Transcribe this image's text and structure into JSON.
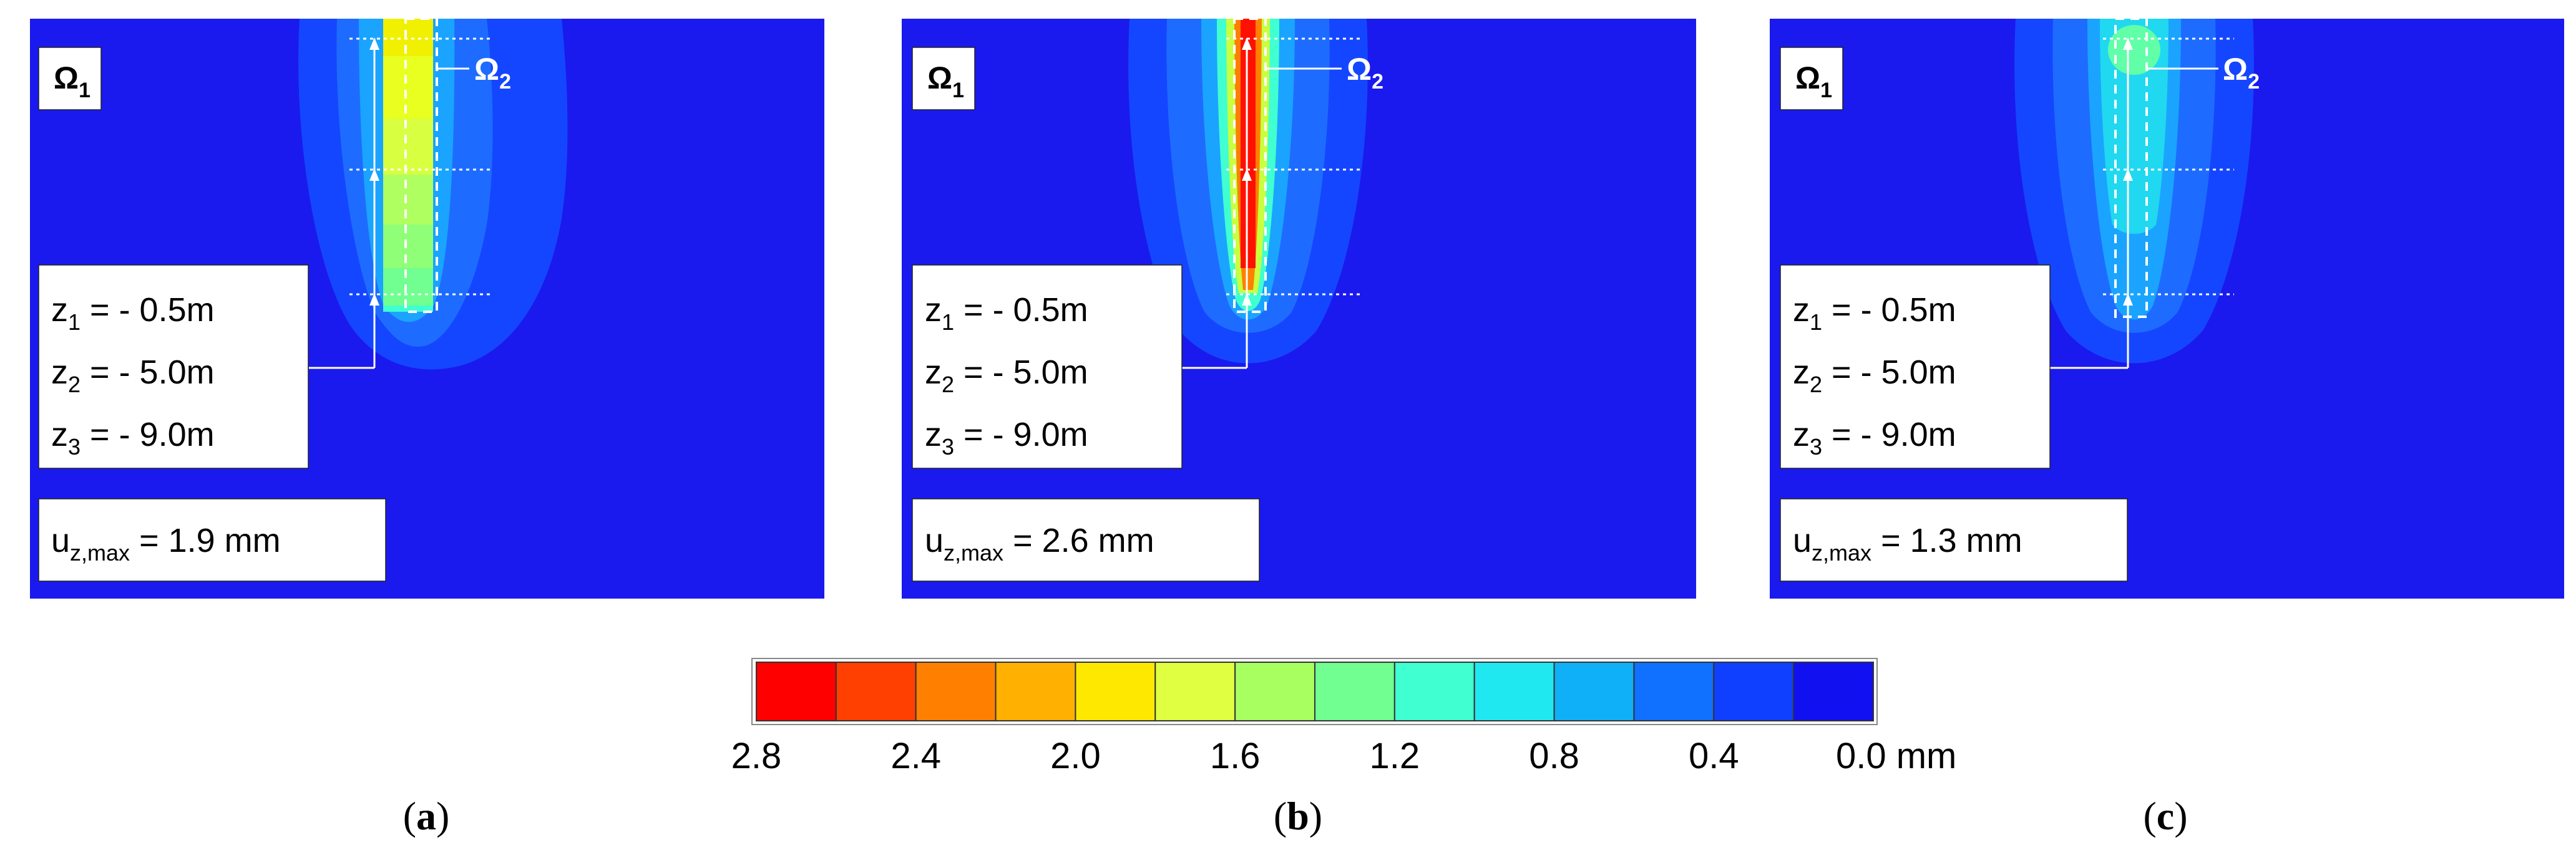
{
  "figure": {
    "panels": [
      {
        "id": "a",
        "caption": "a",
        "omega1": "Ω",
        "omega1_sub": "1",
        "omega2": "Ω",
        "omega2_sub": "2",
        "depths": [
          {
            "var": "z",
            "sub": "1",
            "value": " = - 0.5m"
          },
          {
            "var": "z",
            "sub": "2",
            "value": " = - 5.0m"
          },
          {
            "var": "z",
            "sub": "3",
            "value": " = - 9.0m"
          }
        ],
        "umax_var": "u",
        "umax_sub": "z,max",
        "umax_value": " = 1.9 mm",
        "umax_mm": 1.9
      },
      {
        "id": "b",
        "caption": "b",
        "omega1": "Ω",
        "omega1_sub": "1",
        "omega2": "Ω",
        "omega2_sub": "2",
        "depths": [
          {
            "var": "z",
            "sub": "1",
            "value": " = - 0.5m"
          },
          {
            "var": "z",
            "sub": "2",
            "value": " = - 5.0m"
          },
          {
            "var": "z",
            "sub": "3",
            "value": " = - 9.0m"
          }
        ],
        "umax_var": "u",
        "umax_sub": "z,max",
        "umax_value": " = 2.6 mm",
        "umax_mm": 2.6
      },
      {
        "id": "c",
        "caption": "c",
        "omega1": "Ω",
        "omega1_sub": "1",
        "omega2": "Ω",
        "omega2_sub": "2",
        "depths": [
          {
            "var": "z",
            "sub": "1",
            "value": " = - 0.5m"
          },
          {
            "var": "z",
            "sub": "2",
            "value": " = - 5.0m"
          },
          {
            "var": "z",
            "sub": "3",
            "value": " = - 9.0m"
          }
        ],
        "umax_var": "u",
        "umax_sub": "z,max",
        "umax_value": " = 1.3 mm",
        "umax_mm": 1.3
      }
    ],
    "colorbar": {
      "colors": [
        "#ff0000",
        "#ff4000",
        "#ff8000",
        "#ffb000",
        "#ffe800",
        "#e0ff40",
        "#a8ff60",
        "#70ff90",
        "#40ffd0",
        "#20e8f0",
        "#10b0f8",
        "#1070ff",
        "#1040ff",
        "#1010f0"
      ],
      "ticks": [
        "2.8",
        "2.4",
        "2.0",
        "1.6",
        "1.2",
        "0.8",
        "0.4",
        "0.0 mm"
      ]
    },
    "colors": {
      "background_blue": "#1a1aee",
      "halo_outer": "#1546ff",
      "halo_mid": "#1e6cff",
      "halo_inner": "#1aa4ff"
    }
  }
}
